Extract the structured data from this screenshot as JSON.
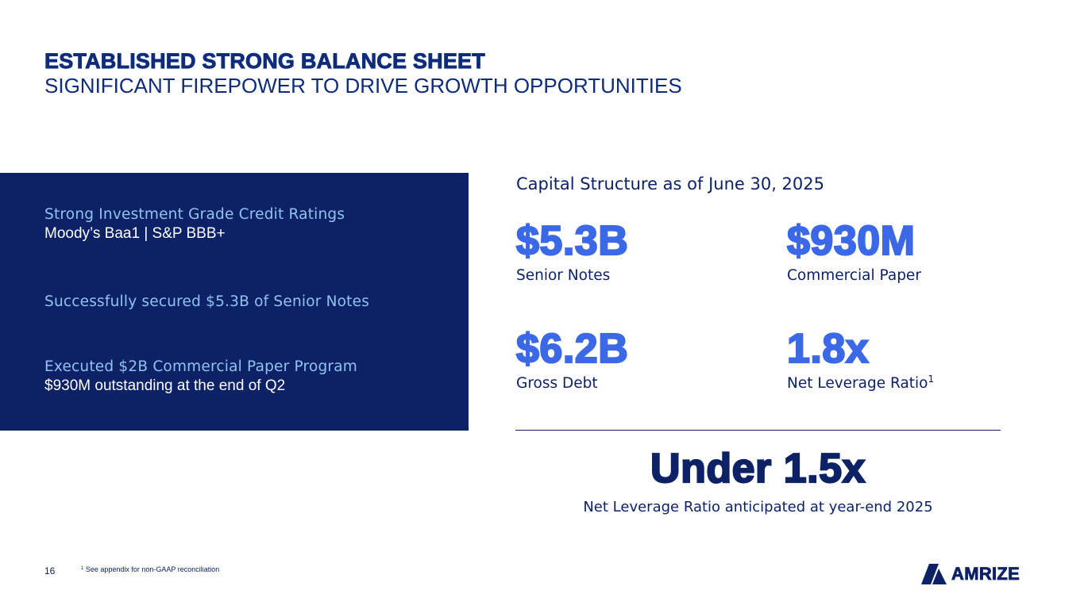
{
  "header": {
    "title": "ESTABLISHED STRONG BALANCE SHEET",
    "subtitle": "SIGNIFICANT FIREPOWER TO DRIVE GROWTH OPPORTUNITIES"
  },
  "panel": {
    "items": [
      {
        "heading": "Strong Investment Grade Credit Ratings",
        "text": "Moody’s Baa1 | S&P BBB+"
      },
      {
        "heading": "Successfully secured $5.3B of Senior Notes",
        "text": ""
      },
      {
        "heading": "Executed $2B Commercial Paper Program",
        "text": "$930M outstanding at the end of Q2"
      }
    ]
  },
  "capital_structure": {
    "heading": "Capital Structure as of June 30, 2025",
    "metrics": [
      {
        "value": "$5.3B",
        "label": "Senior Notes",
        "footnote_ref": ""
      },
      {
        "value": "$930M",
        "label": "Commercial Paper",
        "footnote_ref": ""
      },
      {
        "value": "$6.2B",
        "label": "Gross Debt",
        "footnote_ref": ""
      },
      {
        "value": "1.8x",
        "label": "Net Leverage Ratio",
        "footnote_ref": "1"
      }
    ],
    "target": {
      "value": "Under 1.5x",
      "label": "Net Leverage Ratio anticipated at year-end 2025"
    }
  },
  "footer": {
    "page_number": "16",
    "footnote_marker": "1",
    "footnote_text": " See appendix for non-GAAP reconciliation",
    "logo_text": "AMRIZE",
    "logo_icon": "amrize-logo-icon"
  },
  "colors": {
    "navy": "#0d2266",
    "accent_blue": "#3a68e6",
    "light_blue": "#8fc4ef",
    "white": "#ffffff"
  }
}
